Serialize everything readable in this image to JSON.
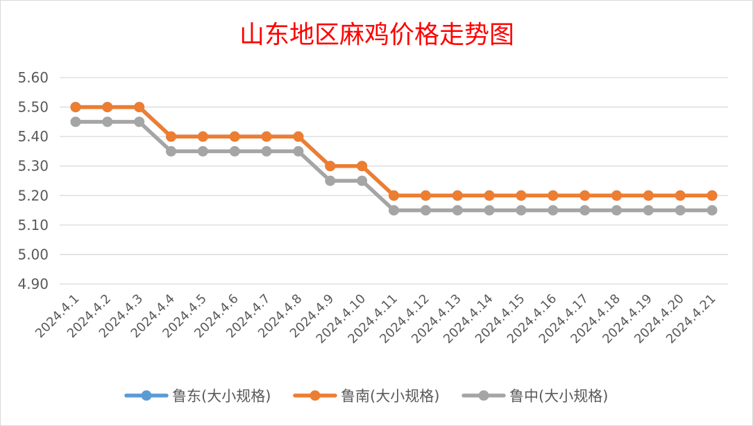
{
  "chart_data": {
    "type": "line",
    "title": "山东地区麻鸡价格走势图",
    "xlabel": "",
    "ylabel": "",
    "categories": [
      "2024.4.1",
      "2024.4.2",
      "2024.4.3",
      "2024.4.4",
      "2024.4.5",
      "2024.4.6",
      "2024.4.7",
      "2024.4.8",
      "2024.4.9",
      "2024.4.10",
      "2024.4.11",
      "2024.4.12",
      "2024.4.13",
      "2024.4.14",
      "2024.4.15",
      "2024.4.16",
      "2024.4.17",
      "2024.4.18",
      "2024.4.19",
      "2024.4.20",
      "2024.4.21"
    ],
    "y_ticks": [
      "4.90",
      "5.00",
      "5.10",
      "5.20",
      "5.30",
      "5.40",
      "5.50",
      "5.60"
    ],
    "ylim": [
      4.9,
      5.6
    ],
    "grid": true,
    "legend_position": "bottom",
    "series": [
      {
        "name": "鲁东(大小规格)",
        "color": "#5b9bd5",
        "values": [
          5.5,
          5.5,
          5.5,
          5.4,
          5.4,
          5.4,
          5.4,
          5.4,
          5.3,
          5.3,
          5.2,
          5.2,
          5.2,
          5.2,
          5.2,
          5.2,
          5.2,
          5.2,
          5.2,
          5.2,
          5.2
        ]
      },
      {
        "name": "鲁南(大小规格)",
        "color": "#ed7d31",
        "values": [
          5.5,
          5.5,
          5.5,
          5.4,
          5.4,
          5.4,
          5.4,
          5.4,
          5.3,
          5.3,
          5.2,
          5.2,
          5.2,
          5.2,
          5.2,
          5.2,
          5.2,
          5.2,
          5.2,
          5.2,
          5.2
        ]
      },
      {
        "name": "鲁中(大小规格)",
        "color": "#a5a5a5",
        "values": [
          5.45,
          5.45,
          5.45,
          5.35,
          5.35,
          5.35,
          5.35,
          5.35,
          5.25,
          5.25,
          5.15,
          5.15,
          5.15,
          5.15,
          5.15,
          5.15,
          5.15,
          5.15,
          5.15,
          5.15,
          5.15
        ]
      }
    ]
  }
}
